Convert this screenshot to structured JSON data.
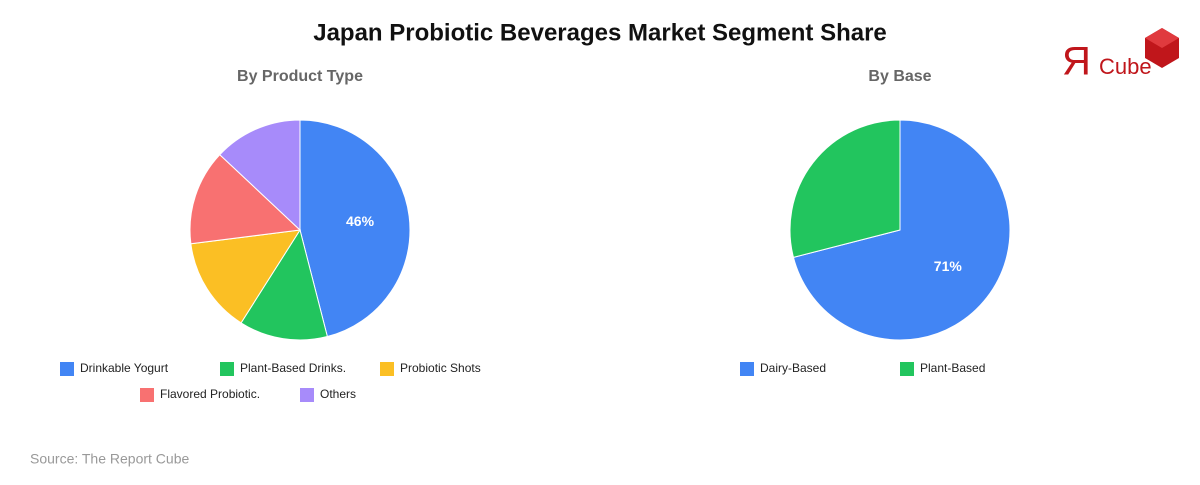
{
  "title": "Japan Probiotic Beverages Market Segment Share",
  "source": "Source: The Report Cube",
  "logo": {
    "mark": "Я",
    "text": "Cube"
  },
  "chart_data": [
    {
      "type": "pie",
      "title": "By Product Type",
      "categories": [
        "Drinkable Yogurt",
        "Plant-Based Drinks.",
        "Probiotic Shots",
        "Flavored Probiotic.",
        "Others"
      ],
      "values": [
        46,
        13,
        14,
        14,
        13
      ],
      "value_labels": [
        "46%",
        null,
        null,
        null,
        null
      ],
      "colors": [
        "#4285f4",
        "#22c55e",
        "#fbbf24",
        "#f87171",
        "#a78bfa"
      ]
    },
    {
      "type": "pie",
      "title": "By Base",
      "categories": [
        "Dairy-Based",
        "Plant-Based"
      ],
      "values": [
        71,
        29
      ],
      "value_labels": [
        "71%",
        null
      ],
      "colors": [
        "#4285f4",
        "#22c55e"
      ]
    }
  ]
}
